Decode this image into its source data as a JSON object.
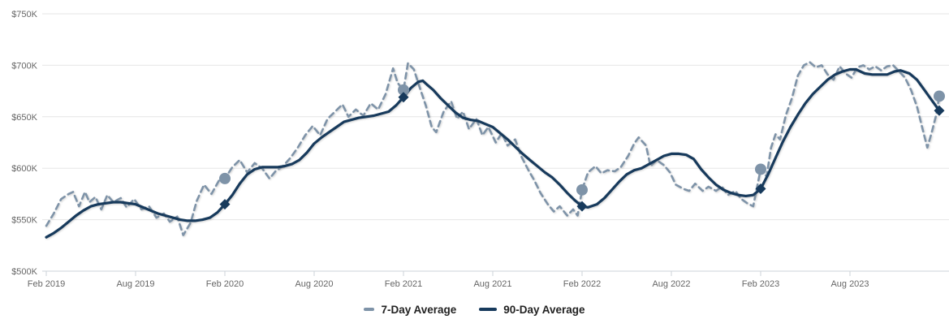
{
  "chart_data": {
    "type": "line",
    "title": "",
    "x_axis": {
      "tick_labels": [
        "Feb 2019",
        "Aug 2019",
        "Feb 2020",
        "Aug 2020",
        "Feb 2021",
        "Aug 2021",
        "Feb 2022",
        "Aug 2022",
        "Feb 2023",
        "Aug 2023"
      ],
      "months_span": [
        0,
        60.4
      ],
      "note_month_zero": "Feb 2019"
    },
    "y_axis": {
      "tick_labels": [
        "$500K",
        "$550K",
        "$600K",
        "$650K",
        "$700K",
        "$750K"
      ],
      "tick_values": [
        500,
        550,
        600,
        650,
        700,
        750
      ],
      "range": [
        500,
        750
      ],
      "unit": "$K"
    },
    "grid": "horizontal-only",
    "legend_position": "bottom-center",
    "series": [
      {
        "name": "7-Day Average",
        "style": "dashed",
        "color": "#7e93a8",
        "marker": "circle",
        "points": [
          [
            0,
            544
          ],
          [
            0.5,
            556
          ],
          [
            1,
            570
          ],
          [
            1.5,
            575
          ],
          [
            1.8,
            577
          ],
          [
            2.2,
            563
          ],
          [
            2.6,
            577
          ],
          [
            2.9,
            567
          ],
          [
            3.3,
            572
          ],
          [
            3.7,
            560
          ],
          [
            4.1,
            574
          ],
          [
            4.5,
            567
          ],
          [
            5,
            571
          ],
          [
            5.4,
            562
          ],
          [
            5.9,
            570
          ],
          [
            6.4,
            560
          ],
          [
            6.9,
            563
          ],
          [
            7.4,
            552
          ],
          [
            7.9,
            556
          ],
          [
            8.3,
            548
          ],
          [
            8.8,
            553
          ],
          [
            9.2,
            535
          ],
          [
            9.7,
            547
          ],
          [
            10.1,
            568
          ],
          [
            10.6,
            584
          ],
          [
            11.1,
            575
          ],
          [
            11.6,
            588
          ],
          [
            12,
            590
          ],
          [
            12.5,
            601
          ],
          [
            13,
            608
          ],
          [
            13.5,
            596
          ],
          [
            14,
            605
          ],
          [
            14.5,
            600
          ],
          [
            15,
            590
          ],
          [
            15.4,
            597
          ],
          [
            15.9,
            602
          ],
          [
            16.4,
            610
          ],
          [
            16.9,
            620
          ],
          [
            17.4,
            632
          ],
          [
            17.9,
            641
          ],
          [
            18.4,
            632
          ],
          [
            18.9,
            648
          ],
          [
            19.4,
            655
          ],
          [
            19.9,
            662
          ],
          [
            20.3,
            650
          ],
          [
            20.8,
            657
          ],
          [
            21.3,
            651
          ],
          [
            21.8,
            663
          ],
          [
            22.3,
            657
          ],
          [
            22.8,
            672
          ],
          [
            23.3,
            697
          ],
          [
            23.6,
            683
          ],
          [
            24,
            676
          ],
          [
            24.3,
            702
          ],
          [
            24.7,
            696
          ],
          [
            25.1,
            678
          ],
          [
            25.5,
            661
          ],
          [
            25.9,
            640
          ],
          [
            26.2,
            635
          ],
          [
            26.7,
            655
          ],
          [
            27.2,
            665
          ],
          [
            27.6,
            648
          ],
          [
            28,
            655
          ],
          [
            28.4,
            638
          ],
          [
            28.9,
            648
          ],
          [
            29.3,
            632
          ],
          [
            29.7,
            640
          ],
          [
            30.2,
            625
          ],
          [
            30.6,
            634
          ],
          [
            31,
            622
          ],
          [
            31.5,
            628
          ],
          [
            31.9,
            612
          ],
          [
            32.4,
            598
          ],
          [
            32.8,
            588
          ],
          [
            33.2,
            576
          ],
          [
            33.7,
            565
          ],
          [
            34.1,
            558
          ],
          [
            34.5,
            563
          ],
          [
            35,
            554
          ],
          [
            35.4,
            560
          ],
          [
            35.7,
            554
          ],
          [
            36,
            579
          ],
          [
            36.4,
            596
          ],
          [
            36.9,
            602
          ],
          [
            37.3,
            595
          ],
          [
            37.7,
            598
          ],
          [
            38.2,
            597
          ],
          [
            38.6,
            601
          ],
          [
            39.1,
            612
          ],
          [
            39.5,
            624
          ],
          [
            39.8,
            630
          ],
          [
            40.3,
            622
          ],
          [
            40.6,
            602
          ],
          [
            41,
            608
          ],
          [
            41.5,
            603
          ],
          [
            41.9,
            596
          ],
          [
            42.3,
            584
          ],
          [
            42.8,
            580
          ],
          [
            43.2,
            578
          ],
          [
            43.6,
            585
          ],
          [
            44.1,
            578
          ],
          [
            44.5,
            582
          ],
          [
            45,
            578
          ],
          [
            45.4,
            582
          ],
          [
            45.8,
            574
          ],
          [
            46.3,
            578
          ],
          [
            46.7,
            570
          ],
          [
            47.1,
            566
          ],
          [
            47.5,
            563
          ],
          [
            48,
            599
          ],
          [
            48.4,
            592
          ],
          [
            48.7,
            620
          ],
          [
            49,
            633
          ],
          [
            49.3,
            628
          ],
          [
            49.7,
            652
          ],
          [
            50.1,
            668
          ],
          [
            50.5,
            690
          ],
          [
            50.9,
            700
          ],
          [
            51.3,
            703
          ],
          [
            51.7,
            698
          ],
          [
            52.1,
            700
          ],
          [
            52.5,
            691
          ],
          [
            52.9,
            686
          ],
          [
            53.3,
            699
          ],
          [
            53.7,
            692
          ],
          [
            54.1,
            688
          ],
          [
            54.5,
            698
          ],
          [
            54.9,
            700
          ],
          [
            55.3,
            696
          ],
          [
            55.7,
            699
          ],
          [
            56.1,
            695
          ],
          [
            56.5,
            699
          ],
          [
            56.9,
            700
          ],
          [
            57.3,
            694
          ],
          [
            57.7,
            688
          ],
          [
            58.1,
            676
          ],
          [
            58.5,
            660
          ],
          [
            58.9,
            637
          ],
          [
            59.2,
            620
          ],
          [
            59.5,
            635
          ],
          [
            59.8,
            652
          ],
          [
            60,
            670
          ]
        ],
        "markers": [
          [
            12,
            590
          ],
          [
            24,
            676
          ],
          [
            36,
            579
          ],
          [
            48,
            599
          ],
          [
            60,
            670
          ]
        ]
      },
      {
        "name": "90-Day Average",
        "style": "solid",
        "color": "#173a5c",
        "marker": "diamond",
        "points": [
          [
            0,
            533
          ],
          [
            0.5,
            537
          ],
          [
            1,
            542
          ],
          [
            1.5,
            548
          ],
          [
            2,
            554
          ],
          [
            2.5,
            559
          ],
          [
            3,
            563
          ],
          [
            3.5,
            565
          ],
          [
            4,
            566
          ],
          [
            4.5,
            567
          ],
          [
            5,
            567
          ],
          [
            5.5,
            566
          ],
          [
            6,
            565
          ],
          [
            6.5,
            562
          ],
          [
            7,
            559
          ],
          [
            7.5,
            556
          ],
          [
            8,
            554
          ],
          [
            8.5,
            552
          ],
          [
            9,
            550
          ],
          [
            9.5,
            549
          ],
          [
            10,
            549
          ],
          [
            10.5,
            550
          ],
          [
            11,
            552
          ],
          [
            11.5,
            557
          ],
          [
            12,
            565
          ],
          [
            12.5,
            574
          ],
          [
            13,
            585
          ],
          [
            13.5,
            594
          ],
          [
            14,
            599
          ],
          [
            14.5,
            601
          ],
          [
            15,
            601
          ],
          [
            15.5,
            601
          ],
          [
            16,
            602
          ],
          [
            16.5,
            604
          ],
          [
            17,
            608
          ],
          [
            17.5,
            615
          ],
          [
            18,
            624
          ],
          [
            18.5,
            630
          ],
          [
            19,
            635
          ],
          [
            19.5,
            640
          ],
          [
            20,
            645
          ],
          [
            20.5,
            647
          ],
          [
            21,
            649
          ],
          [
            21.5,
            650
          ],
          [
            22,
            651
          ],
          [
            22.5,
            653
          ],
          [
            23,
            655
          ],
          [
            23.5,
            661
          ],
          [
            24,
            669
          ],
          [
            24.5,
            678
          ],
          [
            25,
            684
          ],
          [
            25.3,
            685
          ],
          [
            25.6,
            681
          ],
          [
            26,
            676
          ],
          [
            26.5,
            668
          ],
          [
            27,
            661
          ],
          [
            27.5,
            654
          ],
          [
            28,
            649
          ],
          [
            28.5,
            647
          ],
          [
            29,
            646
          ],
          [
            29.5,
            643
          ],
          [
            30,
            640
          ],
          [
            30.5,
            634
          ],
          [
            31,
            628
          ],
          [
            31.5,
            621
          ],
          [
            32,
            614
          ],
          [
            32.5,
            608
          ],
          [
            33,
            602
          ],
          [
            33.5,
            596
          ],
          [
            34,
            591
          ],
          [
            34.5,
            584
          ],
          [
            35,
            576
          ],
          [
            35.5,
            569
          ],
          [
            36,
            563
          ],
          [
            36.4,
            562
          ],
          [
            37,
            565
          ],
          [
            37.5,
            571
          ],
          [
            38,
            579
          ],
          [
            38.5,
            587
          ],
          [
            39,
            594
          ],
          [
            39.5,
            598
          ],
          [
            40,
            600
          ],
          [
            40.5,
            604
          ],
          [
            41,
            608
          ],
          [
            41.5,
            612
          ],
          [
            42,
            614
          ],
          [
            42.5,
            614
          ],
          [
            43,
            613
          ],
          [
            43.5,
            609
          ],
          [
            44,
            599
          ],
          [
            44.5,
            591
          ],
          [
            45,
            584
          ],
          [
            45.5,
            579
          ],
          [
            46,
            576
          ],
          [
            46.5,
            574
          ],
          [
            47,
            573
          ],
          [
            47.5,
            574
          ],
          [
            48,
            580
          ],
          [
            48.5,
            594
          ],
          [
            49,
            610
          ],
          [
            49.5,
            626
          ],
          [
            50,
            640
          ],
          [
            50.5,
            652
          ],
          [
            51,
            663
          ],
          [
            51.5,
            672
          ],
          [
            52,
            679
          ],
          [
            52.5,
            686
          ],
          [
            53,
            691
          ],
          [
            53.5,
            694
          ],
          [
            54,
            696
          ],
          [
            54.4,
            696
          ],
          [
            55,
            692
          ],
          [
            55.5,
            691
          ],
          [
            56,
            691
          ],
          [
            56.5,
            691
          ],
          [
            57,
            694
          ],
          [
            57.4,
            695
          ],
          [
            58,
            692
          ],
          [
            58.5,
            686
          ],
          [
            59,
            676
          ],
          [
            59.5,
            666
          ],
          [
            60,
            656
          ]
        ],
        "markers": [
          [
            12,
            565
          ],
          [
            24,
            669
          ],
          [
            36,
            563
          ],
          [
            48,
            580
          ],
          [
            60,
            656
          ]
        ]
      }
    ]
  },
  "colors": {
    "grid_line": "#e6e6e6",
    "axis_line": "#ccd3d9",
    "tick_label": "#666666",
    "legend_text": "#222222"
  }
}
